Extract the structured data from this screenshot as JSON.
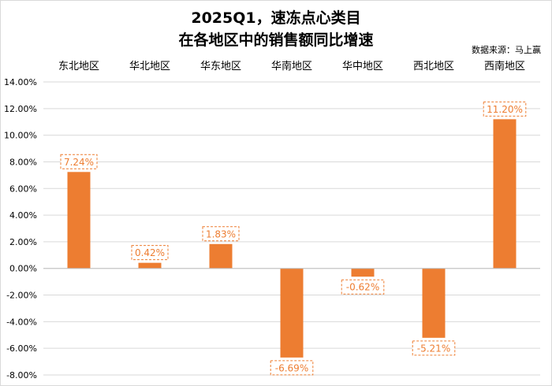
{
  "title_line1": "2025Q1，速冻点心类目",
  "title_line2": "在各地区中的销售额同比增速",
  "source": "数据来源：马上赢",
  "colors": {
    "bar": "#ED7D31",
    "label_border": "#ED7D31",
    "grid": "#d9d9d9"
  },
  "chart_data": {
    "type": "bar",
    "categories": [
      "东北地区",
      "华北地区",
      "华东地区",
      "华南地区",
      "华中地区",
      "西北地区",
      "西南地区"
    ],
    "values": [
      7.24,
      0.42,
      1.83,
      -6.69,
      -0.62,
      -5.21,
      11.2
    ],
    "value_labels": [
      "7.24%",
      "0.42%",
      "1.83%",
      "-6.69%",
      "-0.62%",
      "-5.21%",
      "11.20%"
    ],
    "category_axis_position": "top",
    "ylim": [
      -8,
      14
    ],
    "ytick_step": 2,
    "ytick_labels": [
      "14.00%",
      "12.00%",
      "10.00%",
      "8.00%",
      "6.00%",
      "4.00%",
      "2.00%",
      "0.00%",
      "-2.00%",
      "-4.00%",
      "-6.00%",
      "-8.00%"
    ],
    "grid": true,
    "legend": "none"
  }
}
